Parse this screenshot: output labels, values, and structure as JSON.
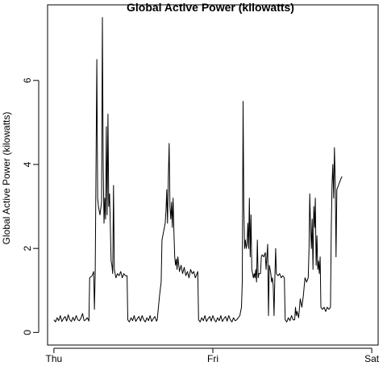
{
  "chart_data": {
    "type": "line",
    "title": "Global Active Power (kilowatts)",
    "xlabel": "",
    "ylabel": "Global Active Power (kilowatts)",
    "x_ticks": [
      {
        "label": "Thu",
        "day": 0
      },
      {
        "label": "Fri",
        "day": 1
      },
      {
        "label": "Sat",
        "day": 2
      }
    ],
    "y_ticks": [
      0,
      2,
      4,
      6
    ],
    "xlim_days": [
      -0.04,
      2.04
    ],
    "ylim": [
      -0.3,
      7.8
    ],
    "grid": false,
    "series": [
      {
        "values": [
          [
            0.0,
            0.3
          ],
          [
            0.01,
            0.25
          ],
          [
            0.02,
            0.35
          ],
          [
            0.03,
            0.28
          ],
          [
            0.04,
            0.4
          ],
          [
            0.05,
            0.26
          ],
          [
            0.06,
            0.33
          ],
          [
            0.07,
            0.38
          ],
          [
            0.08,
            0.27
          ],
          [
            0.09,
            0.42
          ],
          [
            0.1,
            0.3
          ],
          [
            0.11,
            0.26
          ],
          [
            0.12,
            0.36
          ],
          [
            0.13,
            0.28
          ],
          [
            0.14,
            0.4
          ],
          [
            0.15,
            0.3
          ],
          [
            0.16,
            0.28
          ],
          [
            0.17,
            0.34
          ],
          [
            0.18,
            0.45
          ],
          [
            0.19,
            0.28
          ],
          [
            0.2,
            0.3
          ],
          [
            0.21,
            0.35
          ],
          [
            0.22,
            0.27
          ],
          [
            0.225,
            1.3
          ],
          [
            0.24,
            1.35
          ],
          [
            0.25,
            1.45
          ],
          [
            0.255,
            0.55
          ],
          [
            0.26,
            1.4
          ],
          [
            0.27,
            6.5
          ],
          [
            0.275,
            3.2
          ],
          [
            0.28,
            3.0
          ],
          [
            0.29,
            2.8
          ],
          [
            0.3,
            3.1
          ],
          [
            0.305,
            7.5
          ],
          [
            0.31,
            4.0
          ],
          [
            0.315,
            2.6
          ],
          [
            0.32,
            3.2
          ],
          [
            0.325,
            2.7
          ],
          [
            0.33,
            4.9
          ],
          [
            0.335,
            2.8
          ],
          [
            0.34,
            5.2
          ],
          [
            0.345,
            3.0
          ],
          [
            0.35,
            3.3
          ],
          [
            0.355,
            2.5
          ],
          [
            0.36,
            1.7
          ],
          [
            0.365,
            1.6
          ],
          [
            0.37,
            1.4
          ],
          [
            0.375,
            3.5
          ],
          [
            0.38,
            1.5
          ],
          [
            0.39,
            1.3
          ],
          [
            0.4,
            1.4
          ],
          [
            0.41,
            1.35
          ],
          [
            0.42,
            1.45
          ],
          [
            0.43,
            1.3
          ],
          [
            0.44,
            1.4
          ],
          [
            0.45,
            1.35
          ],
          [
            0.46,
            1.35
          ],
          [
            0.465,
            0.3
          ],
          [
            0.475,
            0.25
          ],
          [
            0.485,
            0.35
          ],
          [
            0.495,
            0.28
          ],
          [
            0.505,
            0.4
          ],
          [
            0.515,
            0.26
          ],
          [
            0.525,
            0.33
          ],
          [
            0.535,
            0.38
          ],
          [
            0.545,
            0.27
          ],
          [
            0.555,
            0.4
          ],
          [
            0.565,
            0.3
          ],
          [
            0.575,
            0.25
          ],
          [
            0.585,
            0.35
          ],
          [
            0.595,
            0.28
          ],
          [
            0.605,
            0.4
          ],
          [
            0.615,
            0.26
          ],
          [
            0.625,
            0.33
          ],
          [
            0.635,
            0.38
          ],
          [
            0.645,
            0.27
          ],
          [
            0.65,
            0.3
          ],
          [
            0.655,
            0.5
          ],
          [
            0.665,
            0.9
          ],
          [
            0.675,
            1.2
          ],
          [
            0.68,
            2.2
          ],
          [
            0.69,
            2.4
          ],
          [
            0.7,
            2.6
          ],
          [
            0.705,
            2.9
          ],
          [
            0.71,
            3.4
          ],
          [
            0.715,
            2.6
          ],
          [
            0.72,
            3.7
          ],
          [
            0.725,
            4.5
          ],
          [
            0.73,
            3.0
          ],
          [
            0.735,
            2.7
          ],
          [
            0.74,
            3.1
          ],
          [
            0.745,
            2.5
          ],
          [
            0.75,
            3.2
          ],
          [
            0.755,
            2.4
          ],
          [
            0.76,
            1.8
          ],
          [
            0.765,
            1.6
          ],
          [
            0.77,
            1.75
          ],
          [
            0.775,
            1.5
          ],
          [
            0.78,
            1.8
          ],
          [
            0.79,
            1.45
          ],
          [
            0.8,
            1.6
          ],
          [
            0.81,
            1.4
          ],
          [
            0.82,
            1.55
          ],
          [
            0.83,
            1.35
          ],
          [
            0.84,
            1.45
          ],
          [
            0.85,
            1.3
          ],
          [
            0.86,
            1.5
          ],
          [
            0.87,
            1.4
          ],
          [
            0.88,
            1.45
          ],
          [
            0.89,
            1.3
          ],
          [
            0.9,
            1.4
          ],
          [
            0.905,
            1.45
          ],
          [
            0.91,
            0.3
          ],
          [
            0.92,
            0.25
          ],
          [
            0.93,
            0.35
          ],
          [
            0.94,
            0.28
          ],
          [
            0.95,
            0.4
          ],
          [
            0.96,
            0.26
          ],
          [
            0.97,
            0.33
          ],
          [
            0.98,
            0.38
          ],
          [
            0.99,
            0.27
          ],
          [
            1.0,
            0.4
          ],
          [
            1.01,
            0.3
          ],
          [
            1.02,
            0.25
          ],
          [
            1.03,
            0.35
          ],
          [
            1.04,
            0.28
          ],
          [
            1.05,
            0.4
          ],
          [
            1.06,
            0.26
          ],
          [
            1.07,
            0.33
          ],
          [
            1.08,
            0.38
          ],
          [
            1.09,
            0.27
          ],
          [
            1.1,
            0.4
          ],
          [
            1.11,
            0.3
          ],
          [
            1.12,
            0.25
          ],
          [
            1.13,
            0.35
          ],
          [
            1.14,
            0.28
          ],
          [
            1.15,
            0.3
          ],
          [
            1.16,
            0.35
          ],
          [
            1.17,
            0.4
          ],
          [
            1.18,
            0.6
          ],
          [
            1.185,
            1.2
          ],
          [
            1.19,
            5.5
          ],
          [
            1.195,
            3.0
          ],
          [
            1.2,
            2.0
          ],
          [
            1.205,
            2.2
          ],
          [
            1.21,
            2.0
          ],
          [
            1.215,
            2.1
          ],
          [
            1.22,
            2.6
          ],
          [
            1.225,
            2.0
          ],
          [
            1.23,
            3.2
          ],
          [
            1.235,
            1.8
          ],
          [
            1.24,
            2.8
          ],
          [
            1.245,
            1.5
          ],
          [
            1.25,
            1.4
          ],
          [
            1.255,
            1.3
          ],
          [
            1.26,
            1.4
          ],
          [
            1.265,
            1.3
          ],
          [
            1.27,
            1.5
          ],
          [
            1.275,
            1.2
          ],
          [
            1.28,
            2.2
          ],
          [
            1.285,
            1.3
          ],
          [
            1.29,
            1.4
          ],
          [
            1.3,
            1.4
          ],
          [
            1.305,
            1.8
          ],
          [
            1.31,
            1.85
          ],
          [
            1.32,
            1.8
          ],
          [
            1.33,
            1.9
          ],
          [
            1.335,
            1.5
          ],
          [
            1.34,
            1.8
          ],
          [
            1.345,
            2.1
          ],
          [
            1.35,
            0.4
          ],
          [
            1.355,
            1.6
          ],
          [
            1.36,
            1.5
          ],
          [
            1.365,
            1.4
          ],
          [
            1.37,
            1.2
          ],
          [
            1.375,
            1.3
          ],
          [
            1.38,
            1.1
          ],
          [
            1.385,
            0.4
          ],
          [
            1.39,
            1.3
          ],
          [
            1.395,
            2.0
          ],
          [
            1.4,
            1.4
          ],
          [
            1.41,
            1.35
          ],
          [
            1.42,
            1.4
          ],
          [
            1.43,
            1.3
          ],
          [
            1.44,
            1.35
          ],
          [
            1.45,
            1.3
          ],
          [
            1.455,
            0.3
          ],
          [
            1.465,
            0.25
          ],
          [
            1.475,
            0.35
          ],
          [
            1.485,
            0.28
          ],
          [
            1.495,
            0.4
          ],
          [
            1.505,
            0.3
          ],
          [
            1.515,
            0.3
          ],
          [
            1.52,
            0.6
          ],
          [
            1.525,
            0.4
          ],
          [
            1.53,
            0.5
          ],
          [
            1.54,
            0.35
          ],
          [
            1.55,
            0.8
          ],
          [
            1.56,
            0.6
          ],
          [
            1.57,
            0.9
          ],
          [
            1.575,
            1.1
          ],
          [
            1.58,
            1.3
          ],
          [
            1.59,
            1.2
          ],
          [
            1.6,
            1.3
          ],
          [
            1.605,
            2.0
          ],
          [
            1.61,
            3.3
          ],
          [
            1.615,
            2.5
          ],
          [
            1.62,
            2.0
          ],
          [
            1.625,
            2.7
          ],
          [
            1.63,
            1.5
          ],
          [
            1.635,
            3.0
          ],
          [
            1.64,
            2.5
          ],
          [
            1.645,
            3.2
          ],
          [
            1.65,
            1.6
          ],
          [
            1.655,
            2.3
          ],
          [
            1.66,
            1.5
          ],
          [
            1.665,
            1.7
          ],
          [
            1.67,
            1.4
          ],
          [
            1.675,
            1.8
          ],
          [
            1.68,
            0.6
          ],
          [
            1.69,
            0.55
          ],
          [
            1.7,
            0.6
          ],
          [
            1.71,
            0.5
          ],
          [
            1.72,
            0.6
          ],
          [
            1.73,
            0.55
          ],
          [
            1.74,
            0.6
          ],
          [
            1.745,
            2.5
          ],
          [
            1.75,
            3.5
          ],
          [
            1.755,
            4.0
          ],
          [
            1.76,
            3.2
          ],
          [
            1.765,
            4.4
          ],
          [
            1.77,
            3.6
          ],
          [
            1.775,
            1.8
          ],
          [
            1.78,
            3.4
          ],
          [
            1.79,
            3.5
          ],
          [
            1.8,
            3.6
          ],
          [
            1.81,
            3.7
          ],
          [
            1.815,
            3.7
          ]
        ]
      }
    ]
  }
}
